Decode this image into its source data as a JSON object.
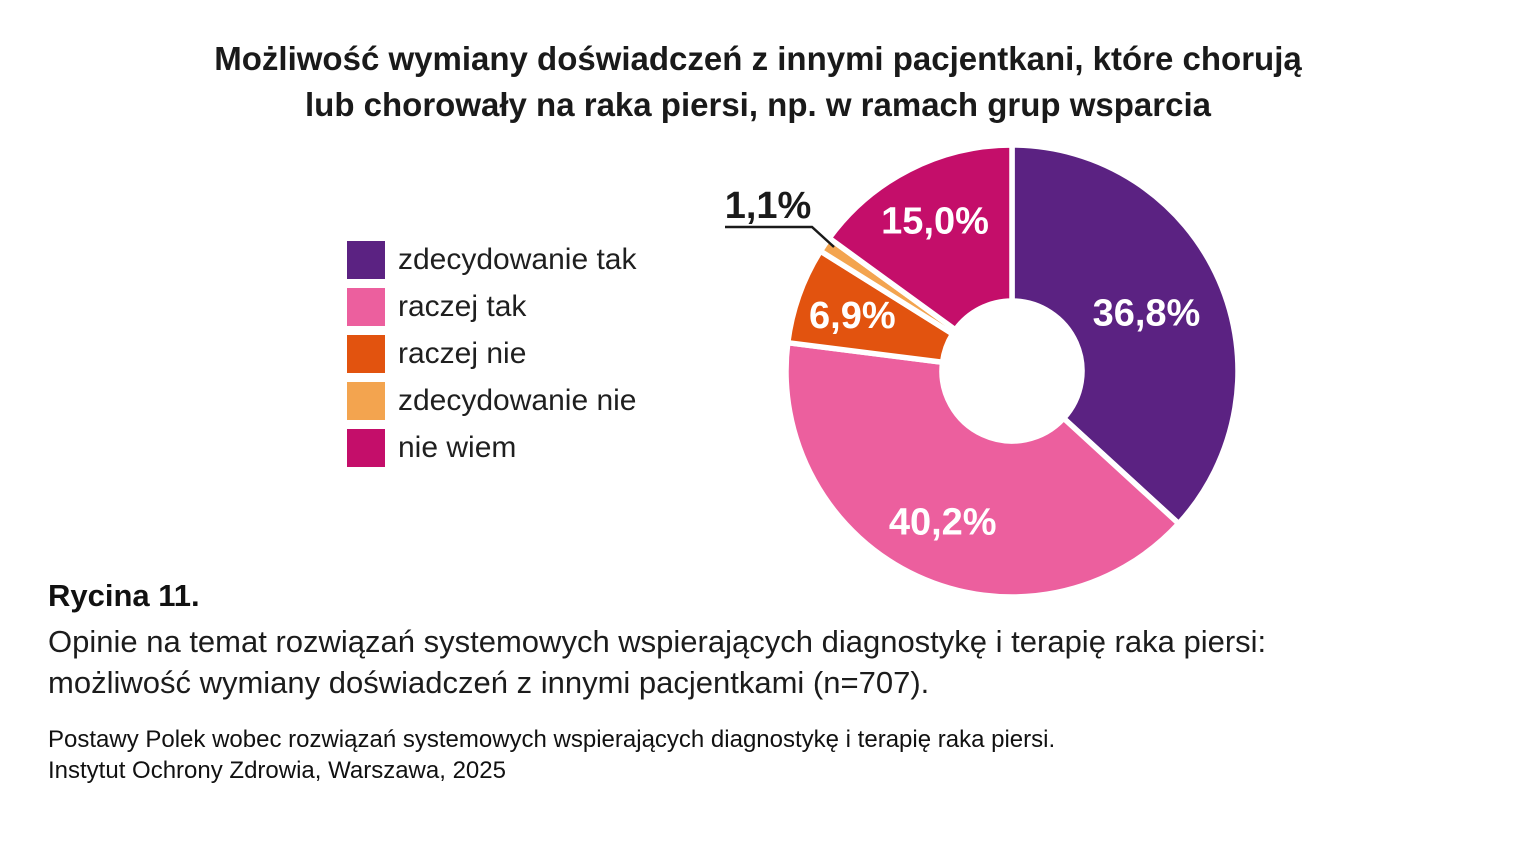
{
  "title": {
    "line1": "Możliwość wymiany doświadczeń z innymi pacjentkani, które chorują",
    "line2": "lub chorowały na raka piersi, np. w ramach grup wsparcia"
  },
  "legend": {
    "items": [
      {
        "label": "zdecydowanie tak",
        "color": "#5B2282"
      },
      {
        "label": "raczej tak",
        "color": "#EC5F9E"
      },
      {
        "label": "raczej nie",
        "color": "#E2530F"
      },
      {
        "label": "zdecydowanie nie",
        "color": "#F3A44F"
      },
      {
        "label": "nie wiem",
        "color": "#C40E6A"
      }
    ]
  },
  "chart_data": {
    "type": "pie",
    "donut": true,
    "title": "Możliwość wymiany doświadczeń z innymi pacjentkani, które chorują lub chorowały na raka piersi, np. w ramach grup wsparcia",
    "categories": [
      "zdecydowanie tak",
      "raczej tak",
      "raczej nie",
      "zdecydowanie nie",
      "nie wiem"
    ],
    "values": [
      36.8,
      40.2,
      6.9,
      1.1,
      15.0
    ],
    "value_labels": [
      "36,8%",
      "40,2%",
      "6,9%",
      "1,1%",
      "15,0%"
    ],
    "colors": [
      "#5B2282",
      "#EC5F9E",
      "#E2530F",
      "#F3A44F",
      "#C40E6A"
    ],
    "start_angle_deg": 0,
    "direction": "clockwise",
    "legend_position": "left",
    "inside_label_color": "#FFFFFF",
    "callout": {
      "category": "zdecydowanie nie",
      "label": "1,1%"
    }
  },
  "caption": {
    "heading": "Rycina 11.",
    "line1": "Opinie na temat rozwiązań systemowych wspierających diagnostykę i terapię raka piersi:",
    "line2": "możliwość wymiany doświadczeń z innymi pacjentkami (n=707)."
  },
  "source": {
    "line1": "Postawy Polek wobec rozwiązań systemowych wspierających diagnostykę i terapię raka piersi.",
    "line2": "Instytut Ochrony Zdrowia, Warszawa, 2025"
  }
}
